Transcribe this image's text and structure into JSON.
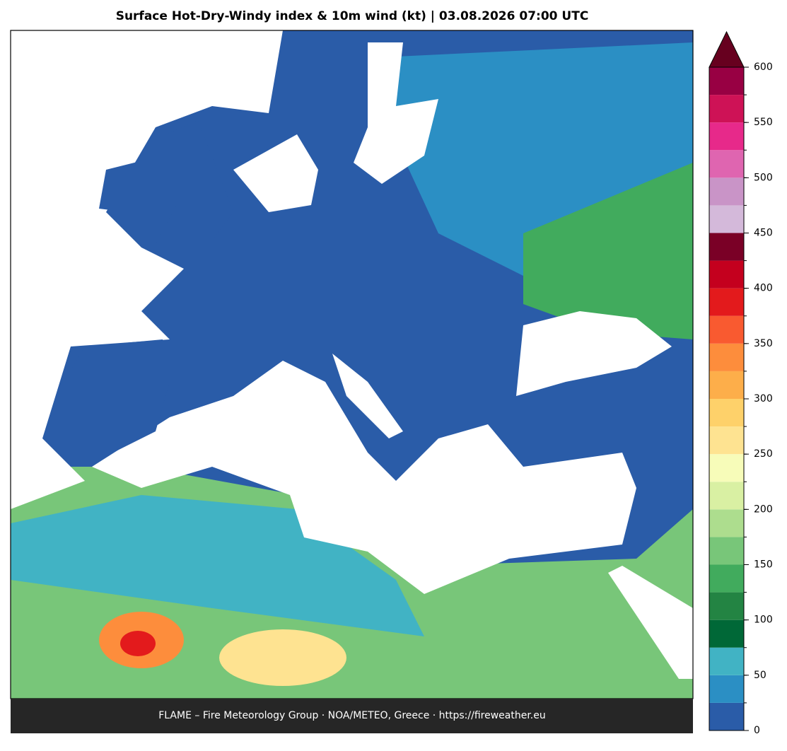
{
  "title": "Surface Hot-Dry-Windy index & 10m wind (kt)  |  03.08.2026 07:00 UTC",
  "footer": "FLAME – Fire Meteorology Group · NOA/METEO, Greece · https://fireweather.eu",
  "colorbar": {
    "levels": [
      0,
      25,
      50,
      75,
      100,
      125,
      150,
      175,
      200,
      225,
      250,
      275,
      300,
      325,
      350,
      375,
      400,
      425,
      450,
      475,
      500,
      525,
      550,
      575,
      600
    ],
    "colors": [
      "#2a5ca8",
      "#2b8fc4",
      "#41b3c4",
      "#006837",
      "#238443",
      "#41ab5d",
      "#78c679",
      "#addd8e",
      "#d9f0a3",
      "#f7fcb9",
      "#fee391",
      "#fed16a",
      "#fdae4a",
      "#fd8d3c",
      "#f95a30",
      "#e31a1c",
      "#c4001e",
      "#7a0026",
      "#d4b9da",
      "#c994c7",
      "#df65b0",
      "#e7298a",
      "#ce1256",
      "#980043"
    ],
    "extend_color": "#67001f",
    "ticks": [
      0,
      50,
      100,
      150,
      200,
      250,
      300,
      350,
      400,
      450,
      500,
      550,
      600
    ]
  }
}
